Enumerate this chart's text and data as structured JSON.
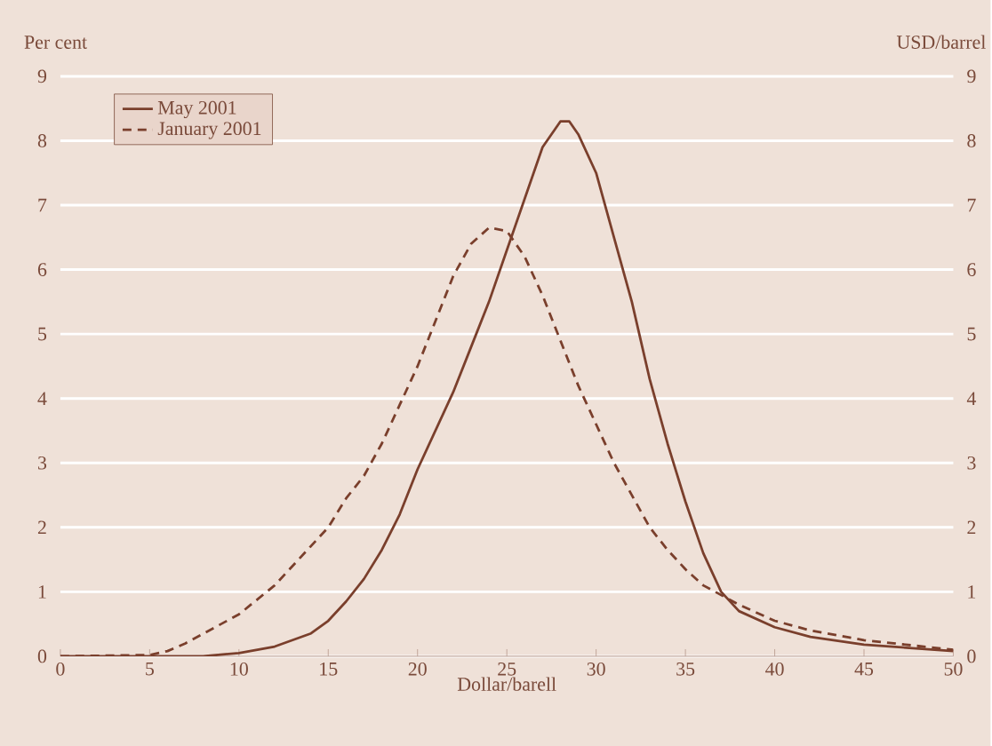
{
  "chart_data": {
    "type": "line",
    "xlabel": "Dollar/barell",
    "ylabel": "Per cent",
    "y2label": "USD/barrel",
    "xlim": [
      0,
      50
    ],
    "xticks": [
      0,
      5,
      10,
      15,
      20,
      25,
      30,
      35,
      40,
      45,
      50
    ],
    "ylim": [
      0,
      9
    ],
    "yticks": [
      0,
      1,
      2,
      3,
      4,
      5,
      6,
      7,
      8,
      9
    ],
    "y2lim": [
      0,
      9
    ],
    "y2ticks": [
      0,
      1,
      2,
      3,
      4,
      5,
      6,
      7,
      8,
      9
    ],
    "grid": "y",
    "legend": "top left",
    "series": [
      {
        "name": "May 2001",
        "color": "#7a3f2c",
        "line_style": "solid",
        "x": [
          0,
          5,
          8,
          10,
          12,
          14,
          15,
          16,
          17,
          18,
          19,
          20,
          21,
          22,
          23,
          24,
          25,
          26,
          27,
          28,
          28.5,
          29,
          30,
          31,
          32,
          33,
          34,
          35,
          36,
          37,
          38,
          40,
          42,
          45,
          50
        ],
        "values": [
          0,
          0,
          0,
          0.05,
          0.15,
          0.35,
          0.55,
          0.85,
          1.2,
          1.65,
          2.2,
          2.9,
          3.5,
          4.1,
          4.8,
          5.5,
          6.3,
          7.1,
          7.9,
          8.3,
          8.3,
          8.1,
          7.5,
          6.5,
          5.5,
          4.3,
          3.3,
          2.4,
          1.6,
          1.0,
          0.7,
          0.45,
          0.3,
          0.18,
          0.08
        ]
      },
      {
        "name": "January 2001",
        "color": "#7a3f2c",
        "line_style": "dashed",
        "x": [
          0,
          5,
          6,
          7,
          8,
          10,
          12,
          14,
          15,
          16,
          17,
          18,
          19,
          20,
          21,
          22,
          23,
          24,
          25,
          26,
          27,
          28,
          29,
          30,
          31,
          32,
          33,
          34,
          35,
          36,
          37,
          38,
          40,
          42,
          45,
          50
        ],
        "values": [
          0,
          0.02,
          0.08,
          0.2,
          0.35,
          0.65,
          1.1,
          1.7,
          2.0,
          2.45,
          2.8,
          3.3,
          3.9,
          4.5,
          5.2,
          5.9,
          6.4,
          6.65,
          6.6,
          6.2,
          5.6,
          4.9,
          4.2,
          3.6,
          3.0,
          2.5,
          2.0,
          1.65,
          1.35,
          1.1,
          0.95,
          0.8,
          0.55,
          0.4,
          0.25,
          0.1
        ]
      }
    ]
  }
}
